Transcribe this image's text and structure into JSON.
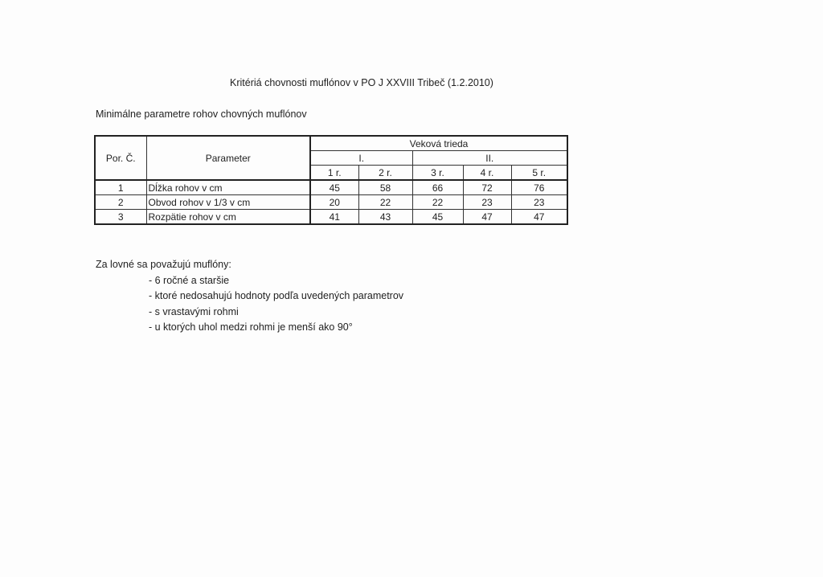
{
  "title": "Kritériá chovnosti muflónov v PO J XXVIII Tribeč (1.2.2010)",
  "subtitle": "Minimálne parametre rohov chovných muflónov",
  "table": {
    "col_por": "Por. Č.",
    "col_param": "Parameter",
    "group_header": "Veková trieda",
    "class_I": "I.",
    "class_II": "II.",
    "years": [
      "1 r.",
      "2 r.",
      "3 r.",
      "4 r.",
      "5 r."
    ],
    "rows": [
      {
        "no": "1",
        "param": "Dĺžka rohov v cm",
        "values": [
          "45",
          "58",
          "66",
          "72",
          "76"
        ]
      },
      {
        "no": "2",
        "param": "Obvod rohov v 1/3 v cm",
        "values": [
          "20",
          "22",
          "22",
          "23",
          "23"
        ]
      },
      {
        "no": "3",
        "param": "Rozpätie rohov v cm",
        "values": [
          "41",
          "43",
          "45",
          "47",
          "47"
        ]
      }
    ]
  },
  "notes": {
    "heading": "Za lovné sa považujú muflóny:",
    "items": [
      "- 6 ročné a staršie",
      "- ktoré nedosahujú hodnoty podľa uvedených parametrov",
      "- s vrastavými rohmi",
      "- u ktorých uhol medzi rohmi je menší ako 90°"
    ]
  }
}
